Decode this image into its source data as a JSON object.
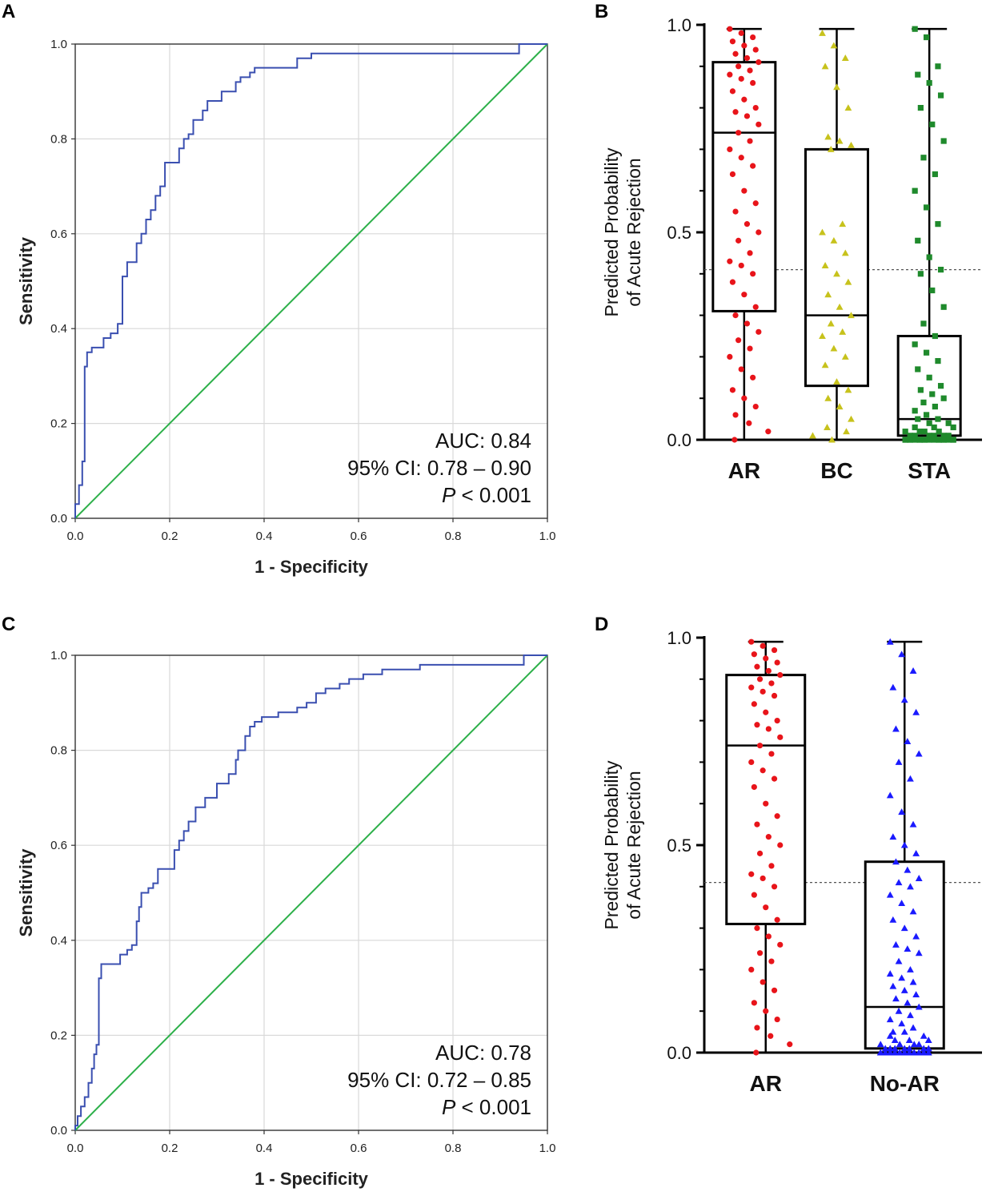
{
  "figure": {
    "panels": [
      "A",
      "B",
      "C",
      "D"
    ],
    "colors": {
      "roc_curve": "#3a4fb0",
      "reference_line": "#2db04a",
      "grid": "#d9d9d9",
      "AR": "#e8141a",
      "BC": "#c7c21c",
      "STA": "#1f8a2c",
      "No-AR": "#1a1aff"
    }
  },
  "chart_data": [
    {
      "panel": "A",
      "type": "line",
      "title": "",
      "xlabel": "1 - Specificity",
      "ylabel": "Sensitivity",
      "xlim": [
        0,
        1
      ],
      "ylim": [
        0,
        1
      ],
      "xticks": [
        "0.0",
        "0.2",
        "0.4",
        "0.6",
        "0.8",
        "1.0"
      ],
      "yticks": [
        "0.0",
        "0.2",
        "0.4",
        "0.6",
        "0.8",
        "1.0"
      ],
      "grid": true,
      "annotations": {
        "auc": "AUC: 0.84",
        "ci": "95% CI: 0.78 – 0.90",
        "p_italic": "P",
        "p_rest": " < 0.001"
      },
      "series": [
        {
          "name": "ROC",
          "x": [
            0,
            0,
            0.008,
            0.008,
            0.015,
            0.015,
            0.02,
            0.02,
            0.025,
            0.025,
            0.035,
            0.035,
            0.06,
            0.06,
            0.075,
            0.075,
            0.09,
            0.09,
            0.1,
            0.1,
            0.11,
            0.11,
            0.13,
            0.13,
            0.14,
            0.14,
            0.15,
            0.15,
            0.16,
            0.16,
            0.17,
            0.17,
            0.18,
            0.18,
            0.19,
            0.19,
            0.22,
            0.22,
            0.23,
            0.23,
            0.24,
            0.24,
            0.25,
            0.25,
            0.27,
            0.27,
            0.28,
            0.28,
            0.31,
            0.31,
            0.34,
            0.34,
            0.35,
            0.35,
            0.37,
            0.37,
            0.38,
            0.38,
            0.47,
            0.47,
            0.5,
            0.5,
            0.6,
            0.6,
            0.94,
            0.94,
            1.0
          ],
          "y": [
            0,
            0.03,
            0.03,
            0.07,
            0.07,
            0.12,
            0.12,
            0.32,
            0.32,
            0.35,
            0.35,
            0.36,
            0.36,
            0.38,
            0.38,
            0.39,
            0.39,
            0.41,
            0.41,
            0.51,
            0.51,
            0.54,
            0.54,
            0.58,
            0.58,
            0.6,
            0.6,
            0.63,
            0.63,
            0.65,
            0.65,
            0.68,
            0.68,
            0.7,
            0.7,
            0.75,
            0.75,
            0.78,
            0.78,
            0.8,
            0.8,
            0.81,
            0.81,
            0.84,
            0.84,
            0.86,
            0.86,
            0.88,
            0.88,
            0.9,
            0.9,
            0.92,
            0.92,
            0.93,
            0.93,
            0.94,
            0.94,
            0.95,
            0.95,
            0.97,
            0.97,
            0.98,
            0.98,
            0.98,
            0.98,
            1.0,
            1.0
          ]
        },
        {
          "name": "Reference",
          "x": [
            0,
            1
          ],
          "y": [
            0,
            1
          ]
        }
      ]
    },
    {
      "panel": "B",
      "type": "box",
      "title": "",
      "ylabel": [
        "Predicted Probability",
        "of Acute Rejection"
      ],
      "ylim": [
        0,
        1
      ],
      "yticks": [
        "0.0",
        "0.5",
        "1.0"
      ],
      "threshold": 0.41,
      "categories": [
        "AR",
        "BC",
        "STA"
      ],
      "boxes": [
        {
          "name": "AR",
          "min": 0.0,
          "q1": 0.31,
          "median": 0.74,
          "q3": 0.91,
          "max": 0.99,
          "marker": "circle",
          "points": [
            0.99,
            0.98,
            0.97,
            0.96,
            0.95,
            0.94,
            0.93,
            0.92,
            0.91,
            0.9,
            0.89,
            0.88,
            0.87,
            0.86,
            0.84,
            0.82,
            0.8,
            0.79,
            0.78,
            0.76,
            0.74,
            0.72,
            0.7,
            0.68,
            0.66,
            0.64,
            0.6,
            0.57,
            0.55,
            0.52,
            0.5,
            0.48,
            0.45,
            0.43,
            0.42,
            0.4,
            0.38,
            0.35,
            0.32,
            0.3,
            0.28,
            0.26,
            0.24,
            0.22,
            0.2,
            0.17,
            0.15,
            0.12,
            0.1,
            0.08,
            0.06,
            0.04,
            0.02,
            0.0
          ]
        },
        {
          "name": "BC",
          "min": 0.0,
          "q1": 0.13,
          "median": 0.3,
          "q3": 0.7,
          "max": 0.99,
          "marker": "triangle",
          "points": [
            0.98,
            0.95,
            0.92,
            0.9,
            0.85,
            0.8,
            0.73,
            0.72,
            0.71,
            0.7,
            0.52,
            0.5,
            0.48,
            0.45,
            0.42,
            0.4,
            0.38,
            0.35,
            0.32,
            0.3,
            0.28,
            0.26,
            0.25,
            0.22,
            0.2,
            0.18,
            0.14,
            0.12,
            0.1,
            0.08,
            0.05,
            0.03,
            0.02,
            0.01,
            0.0
          ]
        },
        {
          "name": "STA",
          "min": 0.0,
          "q1": 0.01,
          "median": 0.05,
          "q3": 0.25,
          "max": 0.99,
          "marker": "square",
          "points": [
            0.99,
            0.97,
            0.9,
            0.88,
            0.86,
            0.83,
            0.8,
            0.76,
            0.72,
            0.68,
            0.64,
            0.6,
            0.56,
            0.52,
            0.48,
            0.44,
            0.41,
            0.4,
            0.36,
            0.32,
            0.28,
            0.25,
            0.23,
            0.21,
            0.19,
            0.17,
            0.15,
            0.13,
            0.12,
            0.11,
            0.1,
            0.09,
            0.08,
            0.07,
            0.06,
            0.05,
            0.05,
            0.04,
            0.04,
            0.03,
            0.03,
            0.03,
            0.02,
            0.02,
            0.02,
            0.02,
            0.01,
            0.01,
            0.01,
            0.01,
            0.01,
            0.01,
            0.0,
            0.0,
            0.0,
            0.0,
            0.0,
            0.0,
            0.0,
            0.0,
            0.0,
            0.0,
            0.0,
            0.0,
            0.0,
            0.0,
            0.0,
            0.0,
            0.0,
            0.0
          ]
        }
      ]
    },
    {
      "panel": "C",
      "type": "line",
      "title": "",
      "xlabel": "1 - Specificity",
      "ylabel": "Sensitivity",
      "xlim": [
        0,
        1
      ],
      "ylim": [
        0,
        1
      ],
      "xticks": [
        "0.0",
        "0.2",
        "0.4",
        "0.6",
        "0.8",
        "1.0"
      ],
      "yticks": [
        "0.0",
        "0.2",
        "0.4",
        "0.6",
        "0.8",
        "1.0"
      ],
      "grid": true,
      "annotations": {
        "auc": "AUC: 0.78",
        "ci": "95% CI: 0.72 – 0.85",
        "p_italic": "P",
        "p_rest": " < 0.001"
      },
      "series": [
        {
          "name": "ROC",
          "x": [
            0,
            0,
            0.005,
            0.005,
            0.012,
            0.012,
            0.02,
            0.02,
            0.028,
            0.028,
            0.035,
            0.035,
            0.04,
            0.04,
            0.045,
            0.045,
            0.05,
            0.05,
            0.055,
            0.055,
            0.095,
            0.095,
            0.11,
            0.11,
            0.12,
            0.12,
            0.13,
            0.13,
            0.135,
            0.135,
            0.14,
            0.14,
            0.155,
            0.155,
            0.165,
            0.165,
            0.175,
            0.175,
            0.21,
            0.21,
            0.22,
            0.22,
            0.23,
            0.23,
            0.24,
            0.24,
            0.255,
            0.255,
            0.275,
            0.275,
            0.3,
            0.3,
            0.325,
            0.325,
            0.34,
            0.34,
            0.345,
            0.345,
            0.36,
            0.36,
            0.37,
            0.37,
            0.38,
            0.38,
            0.395,
            0.395,
            0.43,
            0.43,
            0.47,
            0.47,
            0.49,
            0.49,
            0.51,
            0.51,
            0.53,
            0.53,
            0.56,
            0.56,
            0.58,
            0.58,
            0.61,
            0.61,
            0.65,
            0.65,
            0.73,
            0.73,
            0.95,
            0.95,
            1.0
          ],
          "y": [
            0,
            0.01,
            0.01,
            0.03,
            0.03,
            0.05,
            0.05,
            0.07,
            0.07,
            0.1,
            0.1,
            0.13,
            0.13,
            0.16,
            0.16,
            0.18,
            0.18,
            0.32,
            0.32,
            0.35,
            0.35,
            0.37,
            0.37,
            0.38,
            0.38,
            0.39,
            0.39,
            0.44,
            0.44,
            0.47,
            0.47,
            0.5,
            0.5,
            0.51,
            0.51,
            0.52,
            0.52,
            0.55,
            0.55,
            0.59,
            0.59,
            0.61,
            0.61,
            0.63,
            0.63,
            0.65,
            0.65,
            0.68,
            0.68,
            0.7,
            0.7,
            0.73,
            0.73,
            0.75,
            0.75,
            0.78,
            0.78,
            0.8,
            0.8,
            0.83,
            0.83,
            0.85,
            0.85,
            0.86,
            0.86,
            0.87,
            0.87,
            0.88,
            0.88,
            0.89,
            0.89,
            0.9,
            0.9,
            0.92,
            0.92,
            0.93,
            0.93,
            0.94,
            0.94,
            0.95,
            0.95,
            0.96,
            0.96,
            0.97,
            0.97,
            0.98,
            0.98,
            1.0,
            1.0
          ]
        },
        {
          "name": "Reference",
          "x": [
            0,
            1
          ],
          "y": [
            0,
            1
          ]
        }
      ]
    },
    {
      "panel": "D",
      "type": "box",
      "title": "",
      "ylabel": [
        "Predicted Probability",
        "of Acute Rejection"
      ],
      "ylim": [
        0,
        1
      ],
      "yticks": [
        "0.0",
        "0.5",
        "1.0"
      ],
      "threshold": 0.41,
      "categories": [
        "AR",
        "No-AR"
      ],
      "boxes": [
        {
          "name": "AR",
          "min": 0.0,
          "q1": 0.31,
          "median": 0.74,
          "q3": 0.91,
          "max": 0.99,
          "marker": "circle",
          "points": [
            0.99,
            0.98,
            0.97,
            0.96,
            0.95,
            0.94,
            0.93,
            0.92,
            0.91,
            0.9,
            0.89,
            0.88,
            0.87,
            0.86,
            0.84,
            0.82,
            0.8,
            0.79,
            0.78,
            0.76,
            0.74,
            0.72,
            0.7,
            0.68,
            0.66,
            0.64,
            0.6,
            0.57,
            0.55,
            0.52,
            0.5,
            0.48,
            0.45,
            0.43,
            0.42,
            0.4,
            0.38,
            0.35,
            0.32,
            0.3,
            0.28,
            0.26,
            0.24,
            0.22,
            0.2,
            0.17,
            0.15,
            0.12,
            0.1,
            0.08,
            0.06,
            0.04,
            0.02,
            0.0
          ]
        },
        {
          "name": "No-AR",
          "min": 0.0,
          "q1": 0.01,
          "median": 0.11,
          "q3": 0.46,
          "max": 0.99,
          "marker": "triangle",
          "points": [
            0.99,
            0.96,
            0.92,
            0.88,
            0.85,
            0.82,
            0.78,
            0.75,
            0.72,
            0.7,
            0.66,
            0.62,
            0.58,
            0.55,
            0.52,
            0.5,
            0.48,
            0.46,
            0.44,
            0.42,
            0.41,
            0.4,
            0.38,
            0.36,
            0.34,
            0.32,
            0.3,
            0.28,
            0.26,
            0.25,
            0.24,
            0.22,
            0.2,
            0.19,
            0.18,
            0.17,
            0.16,
            0.15,
            0.14,
            0.13,
            0.12,
            0.11,
            0.1,
            0.09,
            0.08,
            0.07,
            0.06,
            0.05,
            0.05,
            0.04,
            0.04,
            0.03,
            0.03,
            0.03,
            0.02,
            0.02,
            0.02,
            0.02,
            0.01,
            0.01,
            0.01,
            0.01,
            0.01,
            0.01,
            0.01,
            0.0,
            0.0,
            0.0,
            0.0,
            0.0,
            0.0,
            0.0,
            0.0,
            0.0,
            0.0,
            0.0,
            0.0,
            0.0,
            0.0,
            0.0,
            0.0,
            0.0,
            0.0,
            0.0,
            0.0,
            0.0,
            0.0,
            0.0,
            0.0,
            0.0
          ]
        }
      ]
    }
  ]
}
